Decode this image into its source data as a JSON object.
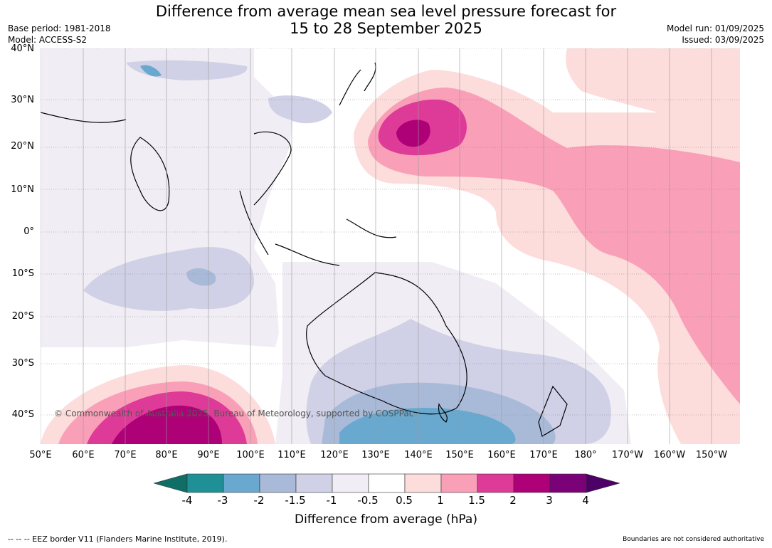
{
  "title_line1": "Difference from average mean sea level pressure forecast for",
  "title_line2": "15 to 28 September 2025",
  "base_period": "Base period: 1981-2018",
  "model": "Model: ACCESS-S2",
  "model_run": "Model run: 01/09/2025",
  "issued": "Issued: 03/09/2025",
  "lat_labels": [
    "40°N",
    "30°N",
    "20°N",
    "10°N",
    "0°",
    "10°S",
    "20°S",
    "30°S",
    "40°S"
  ],
  "lon_labels": [
    "50°E",
    "60°E",
    "70°E",
    "80°E",
    "90°E",
    "100°E",
    "110°E",
    "120°E",
    "130°E",
    "140°E",
    "150°E",
    "160°E",
    "170°E",
    "180°",
    "170°W",
    "160°W",
    "150°W"
  ],
  "copyright": "© Commonwealth of Australia 2025, Bureau of Meteorology, supported by COSPPac",
  "colorbar": {
    "ticks": [
      "-4",
      "-3",
      "-2",
      "-1.5",
      "-1",
      "-0.5",
      "0.5",
      "1",
      "1.5",
      "2",
      "3",
      "4"
    ],
    "colors": [
      "#0f6e66",
      "#1f9196",
      "#6aa9cf",
      "#a9bad9",
      "#d0d1e6",
      "#f1edf4",
      "#ffffff",
      "#fddcdc",
      "#f99fb7",
      "#de3a98",
      "#ae0077",
      "#7a0177",
      "#4d0066"
    ],
    "label": "Difference from average (hPa)"
  },
  "footer_left": "--  --  -- EEZ border V11 (Flanders Marine Institute, 2019).",
  "footer_right": "Boundaries are not considered authoritative"
}
